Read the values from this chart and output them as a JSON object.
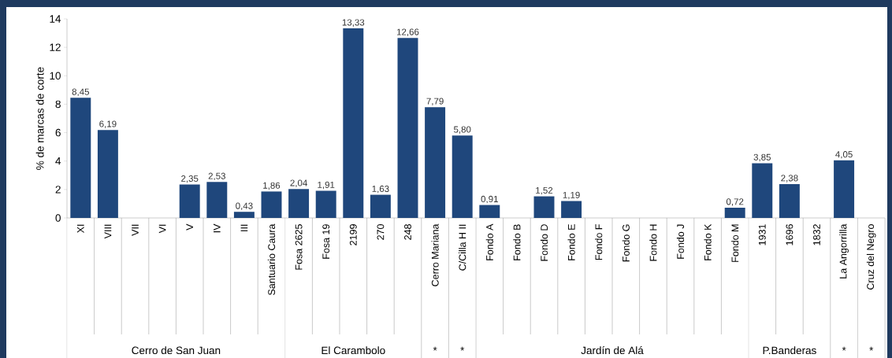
{
  "chart_data": {
    "type": "bar",
    "ylabel": "% de marcas de corte",
    "categories": [
      "XI",
      "VIII",
      "VII",
      "VI",
      "V",
      "IV",
      "III",
      "Santuario Caura",
      "Fosa 2625",
      "Fosa 19",
      "2199",
      "270",
      "248",
      "Cerro Mariana",
      "C/Cilla H II",
      "Fondo A",
      "Fondo B",
      "Fondo D",
      "Fondo E",
      "Fondo F",
      "Fondo G",
      "Fondo H",
      "Fondo J",
      "Fondo K",
      "Fondo M",
      "1931",
      "1696",
      "1832",
      "La Angorrilla",
      "Cruz del Negro"
    ],
    "values": [
      8.45,
      6.19,
      null,
      null,
      2.35,
      2.53,
      0.43,
      1.86,
      2.04,
      1.91,
      13.33,
      1.63,
      12.66,
      7.79,
      5.8,
      0.91,
      null,
      1.52,
      1.19,
      null,
      null,
      null,
      null,
      null,
      0.72,
      3.85,
      2.38,
      null,
      4.05,
      null
    ],
    "value_labels": [
      "8,45",
      "6,19",
      null,
      null,
      "2,35",
      "2,53",
      "0,43",
      "1,86",
      "2,04",
      "1,91",
      "13,33",
      "1,63",
      "12,66",
      "7,79",
      "5,80",
      "0,91",
      null,
      "1,52",
      "1,19",
      null,
      null,
      null,
      null,
      null,
      "0,72",
      "3,85",
      "2,38",
      null,
      "4,05",
      null
    ],
    "color": "#1f477c",
    "ylim": [
      0,
      14
    ],
    "yticks": [
      0,
      2,
      4,
      6,
      8,
      10,
      12,
      14
    ],
    "annotations": [
      "Cerro de San Juan",
      "El Carambolo",
      "*",
      "*",
      "Jardín de Alá",
      "P.Banderas",
      "*",
      "*"
    ]
  }
}
